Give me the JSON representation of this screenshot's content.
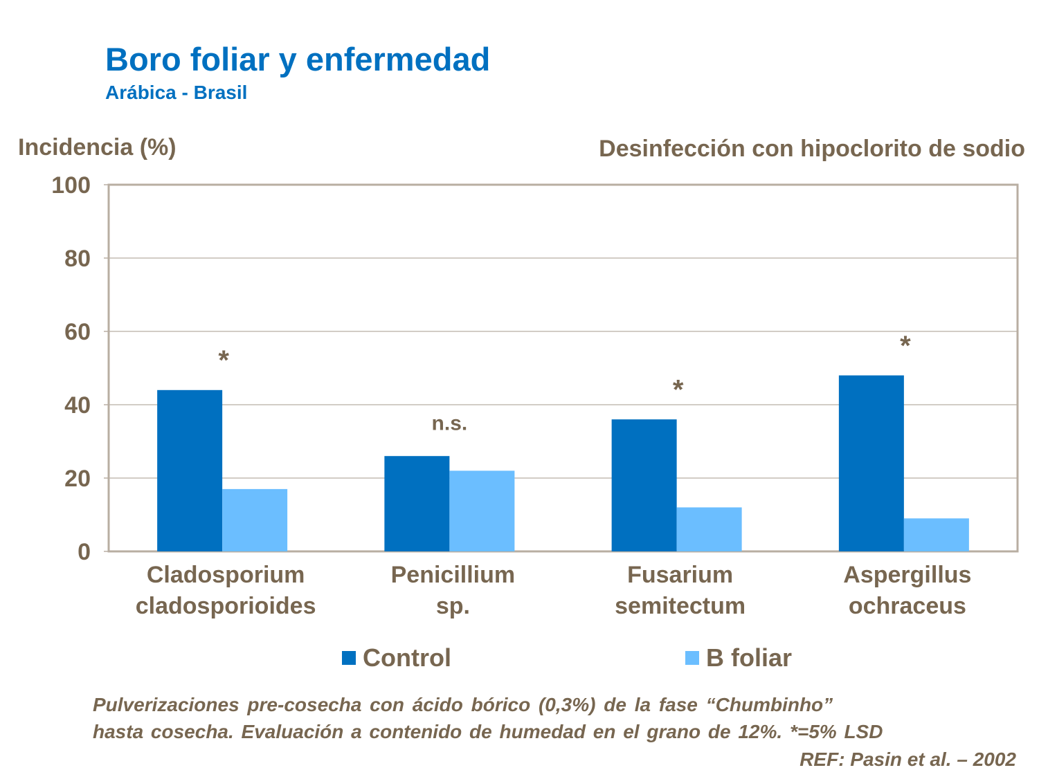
{
  "chart_data": {
    "type": "bar",
    "title": "Boro foliar y enfermedad",
    "subtitle": "Arábica  - Brasil",
    "ylabel": "Incidencia (%)",
    "note": "Desinfección con hipoclorito de sodio",
    "ylim": [
      0,
      100
    ],
    "yticks": [
      "0",
      "20",
      "40",
      "60",
      "80",
      "100"
    ],
    "grid": true,
    "categories": [
      [
        "Cladosporium",
        "cladosporioides"
      ],
      [
        "Penicillium",
        "sp."
      ],
      [
        "Fusarium",
        "semitectum"
      ],
      [
        "Aspergillus",
        "ochraceus"
      ]
    ],
    "series": [
      {
        "name": "Control",
        "color": "#0070C0",
        "values": [
          44,
          26,
          36,
          48
        ]
      },
      {
        "name": "B foliar",
        "color": "#6BBEFF",
        "values": [
          17,
          22,
          12,
          9
        ]
      }
    ],
    "annotations": [
      "*",
      "n.s.",
      "*",
      "*"
    ],
    "legend_position": "bottom"
  },
  "footnote": {
    "line1": "Pulverizaciones pre-cosecha con ácido bórico (0,3%) de la fase “Chumbinho”",
    "line2": "hasta cosecha. Evaluación a contenido de humedad en el grano de 12%. *=5% LSD",
    "ref": "REF: Pasin et al. – 2002"
  }
}
